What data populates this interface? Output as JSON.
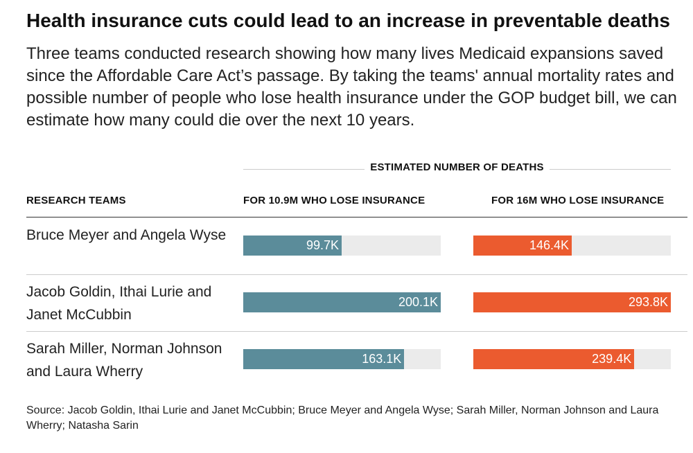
{
  "chart_data": {
    "type": "bar",
    "title": "Health insurance cuts could lead to an increase in preventable deaths",
    "subtitle": "Three teams conducted research showing how many lives Medicaid expansions saved since the Affordable Care Act’s passage. By taking the teams' annual mortality rates and possible number of people who lose health insurance under the GOP budget bill, we can estimate how many could die over the next 10 years.",
    "group_label": "ESTIMATED NUMBER OF DEATHS",
    "row_header": "RESEARCH TEAMS",
    "categories": [
      "Bruce Meyer and Angela Wyse",
      "Jacob Goldin, Ithai Lurie and Janet McCubbin",
      "Sarah Miller, Norman Johnson and Laura Wherry"
    ],
    "series": [
      {
        "name": "FOR 10.9M WHO LOSE INSURANCE",
        "values": [
          99.7,
          200.1,
          163.1
        ],
        "labels": [
          "99.7K",
          "200.1K",
          "163.1K"
        ],
        "max": 200.1,
        "color": "#5b8c9a"
      },
      {
        "name": "FOR 16M WHO LOSE INSURANCE",
        "values": [
          146.4,
          293.8,
          239.4
        ],
        "labels": [
          "146.4K",
          "293.8K",
          "239.4K"
        ],
        "max": 293.8,
        "color": "#eb5b2f"
      }
    ],
    "units": "thousands of deaths",
    "source": "Source: Jacob Goldin, Ithai Lurie and Janet McCubbin; Bruce Meyer and Angela Wyse; Sarah Miller, Norman Johnson and Laura Wherry; Natasha Sarin"
  }
}
